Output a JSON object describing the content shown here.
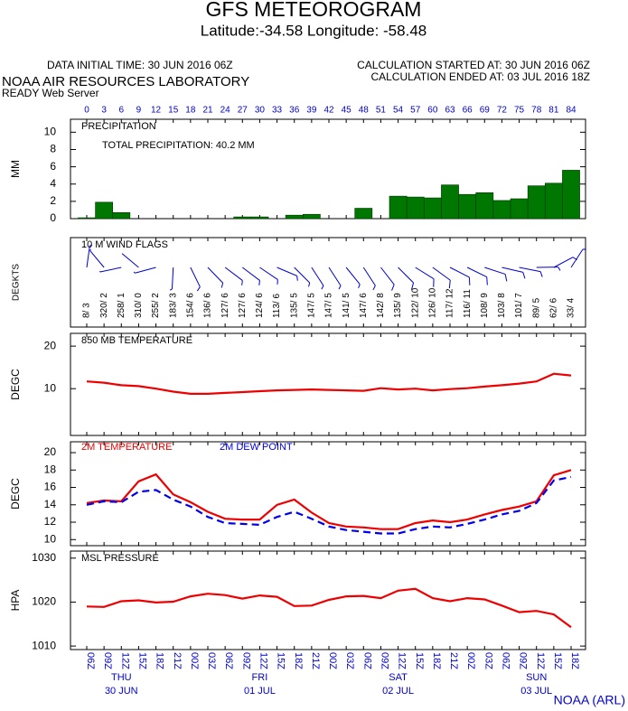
{
  "header": {
    "title": "GFS METEOROGRAM",
    "subtitle": "Latitude:-34.58 Longitude: -58.48",
    "initial_time": "DATA INITIAL TIME: 30 JUN 2016 06Z",
    "calc_started": "CALCULATION STARTED AT: 30 JUN 2016 06Z",
    "calc_ended": "CALCULATION ENDED AT: 03 JUL 2016 18Z",
    "lab": "NOAA AIR RESOURCES LABORATORY",
    "server": "READY Web Server",
    "footer": "NOAA (ARL)"
  },
  "hours": [
    0,
    3,
    6,
    9,
    12,
    15,
    18,
    21,
    24,
    27,
    30,
    33,
    36,
    39,
    42,
    45,
    48,
    51,
    54,
    57,
    60,
    63,
    66,
    69,
    72,
    75,
    78,
    81,
    84
  ],
  "x_labels": [
    "06Z",
    "09Z",
    "12Z",
    "15Z",
    "18Z",
    "21Z",
    "00Z",
    "03Z",
    "06Z",
    "09Z",
    "12Z",
    "15Z",
    "18Z",
    "21Z",
    "00Z",
    "03Z",
    "06Z",
    "09Z",
    "12Z",
    "15Z",
    "18Z",
    "21Z",
    "00Z",
    "03Z",
    "06Z",
    "09Z",
    "12Z",
    "15Z",
    "18Z"
  ],
  "day_labels": [
    {
      "day": "THU",
      "date": "30 JUN"
    },
    {
      "day": "FRI",
      "date": "01 JUL"
    },
    {
      "day": "SAT",
      "date": "02 JUL"
    },
    {
      "day": "SUN",
      "date": "03 JUL"
    }
  ],
  "chart_data": [
    {
      "type": "bar",
      "title": "PRECIPITATION",
      "annotation": "TOTAL PRECIPITATION:  40.2 MM",
      "y_label": "MM",
      "color": "#007700",
      "values": [
        0.1,
        1.9,
        0.7,
        0,
        0,
        0,
        0,
        0,
        0,
        0.2,
        0.2,
        0,
        0.4,
        0.5,
        0,
        0,
        1.2,
        0,
        2.6,
        2.5,
        2.4,
        3.9,
        2.8,
        3.0,
        2.1,
        2.3,
        3.8,
        4.1,
        5.6
      ],
      "ylim": [
        0,
        11.5
      ],
      "yticks": [
        0,
        2,
        4,
        6,
        8,
        10
      ]
    },
    {
      "type": "wind",
      "title": "10 M  WIND FLAGS",
      "y_label": "DEGKTS",
      "color": "#0000cc",
      "direction": [
        8,
        320,
        258,
        310,
        255,
        183,
        154,
        136,
        127,
        127,
        124,
        113,
        135,
        147,
        147,
        141,
        147,
        142,
        135,
        122,
        126,
        117,
        116,
        108,
        103,
        101,
        89,
        62,
        33
      ],
      "speed": [
        3,
        2,
        1,
        0,
        2,
        3,
        6,
        6,
        6,
        6,
        6,
        6,
        5,
        5,
        5,
        5,
        6,
        8,
        9,
        10,
        10,
        12,
        11,
        9,
        8,
        7,
        5,
        6,
        4
      ],
      "value_labels": [
        "8/ 3",
        "320/ 2",
        "258/ 1",
        "310/ 0",
        "255/ 2",
        "183/ 3",
        "154/ 6",
        "136/ 6",
        "127/ 6",
        "127/ 6",
        "124/ 6",
        "113/ 6",
        "135/ 5",
        "147/ 5",
        "147/ 5",
        "141/ 5",
        "147/ 6",
        "142/ 8",
        "135/ 9",
        "122/ 10",
        "126/ 10",
        "117/ 12",
        "116/ 11",
        "108/ 9",
        "103/ 8",
        "101/ 7",
        "89/ 5",
        "62/ 6",
        "33/ 4"
      ]
    },
    {
      "type": "line",
      "title": "850 MB  TEMPERATURE",
      "y_label": "DEGC",
      "ylim": [
        -1,
        23
      ],
      "yticks": [
        10,
        20
      ],
      "series": [
        {
          "color": "#ee0000",
          "values": [
            11.7,
            11.4,
            10.8,
            10.6,
            10.0,
            9.3,
            8.8,
            8.8,
            9.0,
            9.2,
            9.4,
            9.6,
            9.7,
            9.8,
            9.7,
            9.6,
            9.5,
            10.1,
            9.8,
            10.0,
            9.6,
            9.9,
            10.1,
            10.5,
            10.8,
            11.2,
            11.7,
            13.5,
            13.1
          ]
        }
      ]
    },
    {
      "type": "line",
      "y_label": "DEGC",
      "ylim": [
        9.3,
        21.25
      ],
      "yticks": [
        10,
        12,
        14,
        16,
        18,
        20
      ],
      "series": [
        {
          "name": "2M TEMPERATURE",
          "color": "#ee0000",
          "values": [
            14.2,
            14.5,
            14.4,
            16.7,
            17.5,
            15.2,
            14.3,
            13.2,
            12.4,
            12.3,
            12.3,
            14.0,
            14.6,
            13.1,
            11.9,
            11.5,
            11.4,
            11.2,
            11.2,
            11.9,
            12.2,
            12.0,
            12.3,
            12.9,
            13.4,
            13.8,
            14.4,
            17.4,
            18.0
          ]
        },
        {
          "name": "2M  DEW POINT",
          "color": "#0000ee",
          "dashed": true,
          "values": [
            14.0,
            14.4,
            14.3,
            15.5,
            15.7,
            14.6,
            13.8,
            12.6,
            11.9,
            11.8,
            11.7,
            12.6,
            13.2,
            12.4,
            11.5,
            11.1,
            10.9,
            10.7,
            10.7,
            11.2,
            11.5,
            11.4,
            11.8,
            12.3,
            12.9,
            13.3,
            14.2,
            16.8,
            17.2
          ]
        }
      ]
    },
    {
      "type": "line",
      "title": "MSL PRESSURE",
      "y_label": "HPA",
      "ylim": [
        1009.2,
        1031.6
      ],
      "yticks": [
        1010,
        1020,
        1030
      ],
      "series": [
        {
          "color": "#ee0000",
          "values": [
            1019.0,
            1018.9,
            1020.2,
            1020.4,
            1019.9,
            1020.1,
            1021.3,
            1021.9,
            1021.6,
            1020.8,
            1021.5,
            1021.2,
            1019.1,
            1019.2,
            1020.5,
            1021.3,
            1021.4,
            1020.9,
            1022.6,
            1023.0,
            1020.9,
            1020.2,
            1020.9,
            1020.6,
            1019.2,
            1017.7,
            1018.0,
            1017.2,
            1014.3
          ]
        }
      ]
    }
  ]
}
